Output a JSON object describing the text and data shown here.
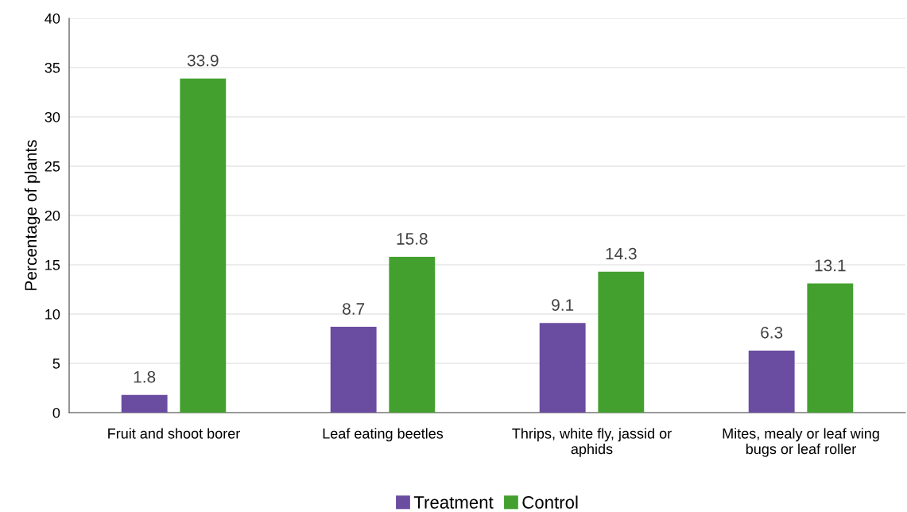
{
  "chart_data": {
    "type": "bar",
    "ylabel": "Percentage of plants",
    "categories": [
      "Fruit and shoot borer",
      "Leaf eating beetles",
      "Thrips, white fly, jassid or\naphids",
      "Mites, mealy or leaf wing\nbugs or leaf roller"
    ],
    "series": [
      {
        "name": "Treatment",
        "color": "#6a4ca0",
        "values": [
          1.8,
          8.7,
          9.1,
          6.3
        ]
      },
      {
        "name": "Control",
        "color": "#43a02f",
        "values": [
          33.9,
          15.8,
          14.3,
          13.1
        ]
      }
    ],
    "ylim": [
      0,
      40
    ],
    "yticks": [
      0,
      5,
      10,
      15,
      20,
      25,
      30,
      35,
      40
    ],
    "grid": "y",
    "legend": "bottom",
    "data_labels": true
  }
}
